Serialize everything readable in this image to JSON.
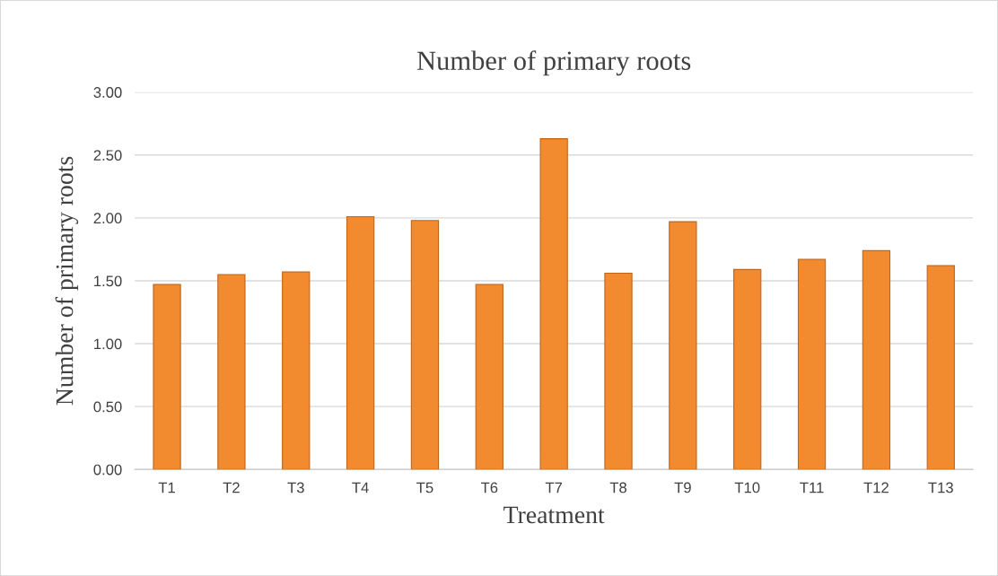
{
  "chart_data": {
    "type": "bar",
    "title": "Number of primary roots",
    "xlabel": "Treatment",
    "ylabel": "Number of primary roots",
    "categories": [
      "T1",
      "T2",
      "T3",
      "T4",
      "T5",
      "T6",
      "T7",
      "T8",
      "T9",
      "T10",
      "T11",
      "T12",
      "T13"
    ],
    "values": [
      1.47,
      1.55,
      1.57,
      2.01,
      1.98,
      1.47,
      2.63,
      1.56,
      1.97,
      1.59,
      1.67,
      1.74,
      1.62
    ],
    "color": "#f28a30",
    "ylim": [
      0,
      3
    ],
    "yticks": [
      {
        "value": 0,
        "label": "0.00"
      },
      {
        "value": 0.5,
        "label": "0.50"
      },
      {
        "value": 1,
        "label": "1.00"
      },
      {
        "value": 1.5,
        "label": "1.50"
      },
      {
        "value": 2,
        "label": "2.00"
      },
      {
        "value": 2.5,
        "label": "2.50"
      },
      {
        "value": 3,
        "label": "3.00"
      }
    ],
    "grid": "y",
    "legend": false
  }
}
